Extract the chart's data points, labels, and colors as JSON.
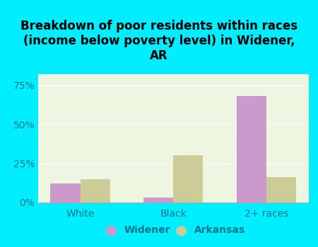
{
  "title": "Breakdown of poor residents within races\n(income below poverty level) in Widener,\nAR",
  "categories": [
    "White",
    "Black",
    "2+ races"
  ],
  "widener_values": [
    12.0,
    3.0,
    68.0
  ],
  "arkansas_values": [
    15.0,
    30.0,
    16.0
  ],
  "widener_color": "#cc99cc",
  "arkansas_color": "#cccc99",
  "background_color": "#00eeff",
  "plot_bg_color": "#eef5e0",
  "yticks": [
    0,
    25,
    50,
    75
  ],
  "ylim": [
    0,
    82
  ],
  "bar_width": 0.32,
  "legend_labels": [
    "Widener",
    "Arkansas"
  ],
  "title_fontsize": 12,
  "tick_fontsize": 10,
  "legend_fontsize": 10,
  "text_color": "#007788"
}
